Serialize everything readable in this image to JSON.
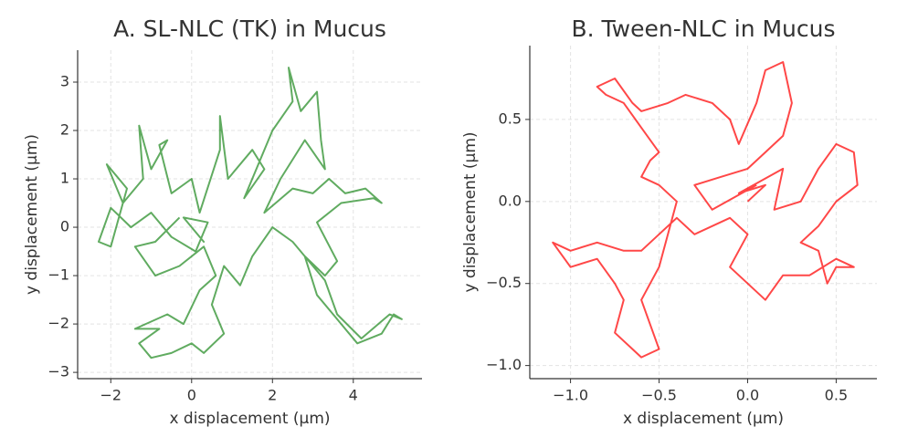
{
  "chart_data": [
    {
      "type": "line",
      "title": "A. SL-NLC (TK) in Mucus",
      "xlabel": "x displacement (µm)",
      "ylabel": "y displacement (µm)",
      "color": "#228b22",
      "grid": true,
      "xlim": [
        -2.82,
        5.7
      ],
      "ylim": [
        -3.13,
        3.66
      ],
      "xticks": [
        {
          "value": -2,
          "label": "−2"
        },
        0,
        2,
        4
      ],
      "yticks": [
        {
          "value": -3,
          "label": "−3"
        },
        {
          "value": -2,
          "label": "−2"
        },
        {
          "value": -1,
          "label": "−1"
        },
        0,
        1,
        2,
        3
      ],
      "x": [
        0,
        0.3,
        -0.2,
        0.4,
        0.1,
        -0.5,
        -1.0,
        -1.5,
        -2.0,
        -2.3,
        -2.0,
        -1.6,
        -2.1,
        -1.7,
        -1.2,
        -1.3,
        -1.0,
        -0.6,
        -0.8,
        -0.5,
        0,
        0.2,
        0.7,
        0.7,
        0.9,
        1.5,
        1.8,
        1.3,
        2.0,
        2.5,
        2.4,
        2.7,
        3.1,
        3.2,
        3.3,
        2.8,
        2.2,
        1.8,
        2.5,
        3.0,
        3.4,
        3.8,
        4.3,
        4.7,
        4.5,
        3.7,
        3.1,
        3.6,
        3.3,
        2.8,
        3.1,
        3.5,
        4.1,
        4.7,
        5.0,
        5.2,
        4.9,
        4.2,
        3.6,
        3.3,
        2.5,
        2.0,
        1.5,
        1.2,
        0.8,
        0.5,
        0.8,
        0.3,
        0,
        -0.5,
        -1.0,
        -1.3,
        -0.8,
        -1.4,
        -0.6,
        -0.2,
        0.2,
        0.6,
        0.3,
        -0.3,
        -0.9,
        -1.4,
        -0.9,
        -0.3
      ],
      "values": [
        0,
        -0.3,
        0.2,
        0.1,
        -0.5,
        -0.2,
        0.3,
        0.0,
        0.4,
        -0.3,
        -0.4,
        0.8,
        1.3,
        0.5,
        1.0,
        2.1,
        1.2,
        1.8,
        1.7,
        0.7,
        1.0,
        0.3,
        1.6,
        2.3,
        1.0,
        1.6,
        1.2,
        0.6,
        2.0,
        2.6,
        3.3,
        2.4,
        2.8,
        1.8,
        1.2,
        1.8,
        1.0,
        0.3,
        0.8,
        0.7,
        1.0,
        0.7,
        0.8,
        0.5,
        0.6,
        0.5,
        0.1,
        -0.7,
        -1.0,
        -0.6,
        -1.4,
        -1.8,
        -2.4,
        -2.2,
        -1.8,
        -1.9,
        -1.8,
        -2.3,
        -1.8,
        -1.1,
        -0.3,
        0.0,
        -0.6,
        -1.2,
        -0.8,
        -1.6,
        -2.2,
        -2.6,
        -2.4,
        -2.6,
        -2.7,
        -2.4,
        -2.1,
        -2.1,
        -1.8,
        -2.0,
        -1.3,
        -1.0,
        -0.4,
        -0.8,
        -1.0,
        -0.4,
        -0.3,
        0.2
      ]
    },
    {
      "type": "line",
      "title": "B. Tween-NLC in Mucus",
      "xlabel": "x displacement (µm)",
      "ylabel": "y displacement (µm)",
      "color": "#ff0000",
      "grid": true,
      "xlim": [
        -1.23,
        0.73
      ],
      "ylim": [
        -1.08,
        0.95
      ],
      "xticks": [
        {
          "value": -1,
          "label": "−1.0"
        },
        {
          "value": -0.5,
          "label": "−0.5"
        },
        {
          "value": 0,
          "label": "0.0"
        },
        0.5
      ],
      "yticks": [
        {
          "value": -1,
          "label": "−1.0"
        },
        {
          "value": -0.5,
          "label": "−0.5"
        },
        {
          "value": 0,
          "label": "0.0"
        },
        0.5
      ],
      "x": [
        0,
        0.1,
        -0.05,
        0.2,
        0.15,
        0.3,
        0.4,
        0.5,
        0.6,
        0.62,
        0.5,
        0.4,
        0.3,
        0.4,
        0.45,
        0.5,
        0.6,
        0.5,
        0.35,
        0.2,
        0.1,
        0.0,
        -0.1,
        0.0,
        -0.1,
        -0.3,
        -0.4,
        -0.5,
        -0.6,
        -0.7,
        -0.85,
        -1.0,
        -1.1,
        -1.0,
        -0.85,
        -0.75,
        -0.7,
        -0.75,
        -0.65,
        -0.6,
        -0.5,
        -0.55,
        -0.6,
        -0.5,
        -0.45,
        -0.4,
        -0.5,
        -0.6,
        -0.55,
        -0.5,
        -0.6,
        -0.7,
        -0.8,
        -0.85,
        -0.75,
        -0.65,
        -0.6,
        -0.45,
        -0.35,
        -0.2,
        -0.1,
        -0.05,
        0.05,
        0.1,
        0.2,
        0.25,
        0.2,
        0.1,
        0,
        -0.15,
        -0.3,
        -0.2,
        0.05
      ],
      "values": [
        0,
        0.1,
        0.05,
        0.2,
        -0.05,
        0.0,
        0.2,
        0.35,
        0.3,
        0.1,
        0.0,
        -0.15,
        -0.25,
        -0.3,
        -0.5,
        -0.4,
        -0.4,
        -0.35,
        -0.45,
        -0.45,
        -0.6,
        -0.5,
        -0.4,
        -0.2,
        -0.1,
        -0.2,
        -0.1,
        -0.2,
        -0.3,
        -0.3,
        -0.25,
        -0.3,
        -0.25,
        -0.4,
        -0.35,
        -0.5,
        -0.6,
        -0.8,
        -0.9,
        -0.95,
        -0.9,
        -0.75,
        -0.6,
        -0.4,
        -0.2,
        0.0,
        0.1,
        0.15,
        0.25,
        0.3,
        0.45,
        0.6,
        0.65,
        0.7,
        0.75,
        0.6,
        0.55,
        0.6,
        0.65,
        0.6,
        0.5,
        0.35,
        0.6,
        0.8,
        0.85,
        0.6,
        0.4,
        0.3,
        0.2,
        0.15,
        0.1,
        -0.05,
        0.1
      ]
    }
  ]
}
